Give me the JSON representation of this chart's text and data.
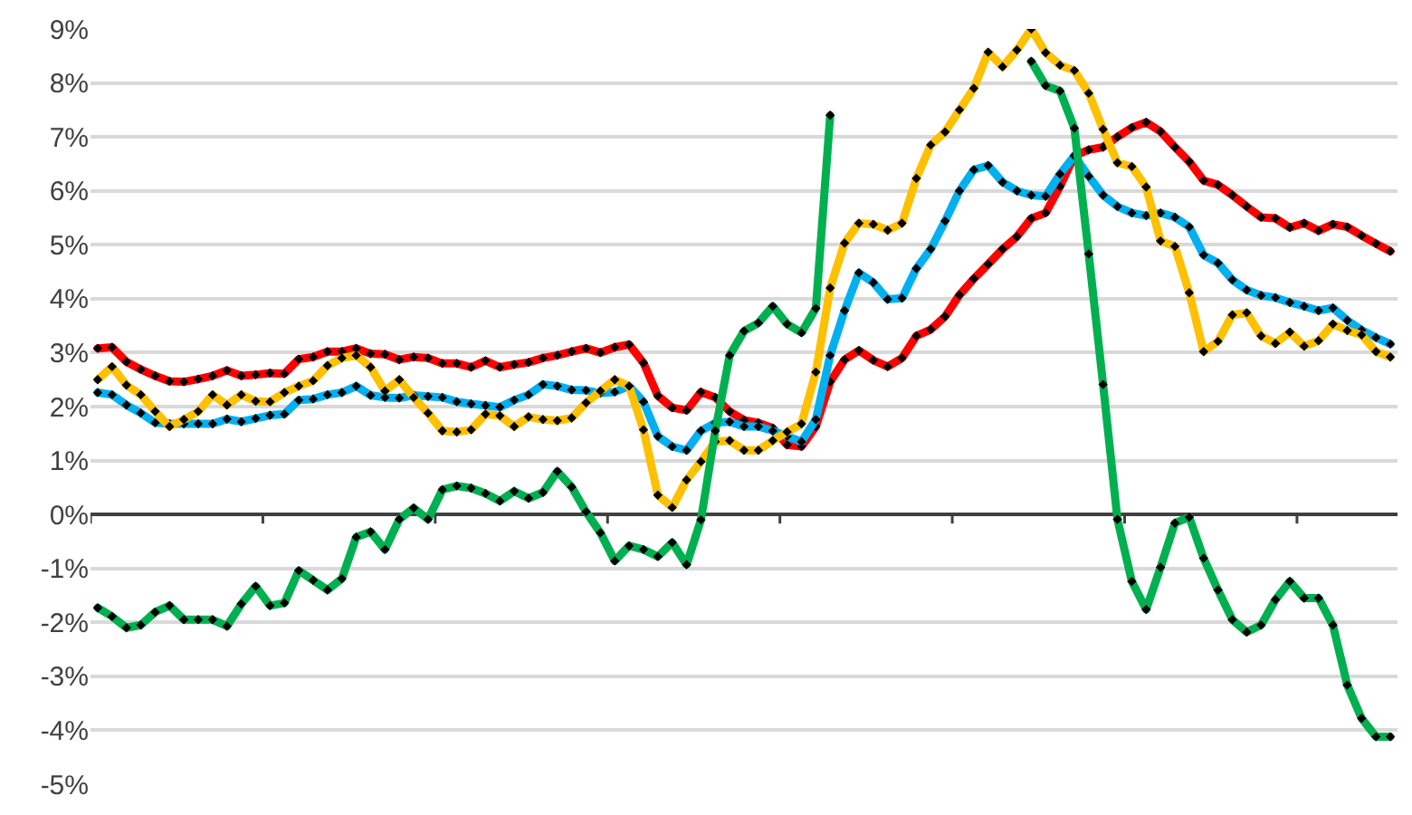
{
  "chart_data": {
    "type": "line",
    "categories": [
      null,
      null,
      null,
      null,
      null,
      null,
      null,
      null,
      null,
      null,
      null,
      null,
      null,
      null,
      null,
      null,
      null,
      null,
      null,
      null,
      null,
      null,
      null,
      null,
      null,
      null,
      null,
      null,
      null,
      null,
      null,
      null,
      null,
      null,
      null,
      null,
      null,
      null,
      null,
      null,
      null,
      null,
      null,
      null,
      null,
      null,
      null,
      null,
      null,
      null,
      null,
      null,
      null,
      null,
      null,
      null,
      null,
      null,
      null,
      null,
      null,
      null,
      null,
      null,
      null,
      null,
      null,
      null,
      null,
      null,
      null,
      null,
      null,
      null,
      null,
      null,
      null,
      null,
      null,
      null,
      null,
      null,
      null,
      null,
      null,
      null,
      null,
      null,
      null,
      null,
      null
    ],
    "ylim": [
      -5,
      9
    ],
    "yticks": [
      {
        "value": -5,
        "label": "-5%"
      },
      {
        "value": -4,
        "label": "-4%"
      },
      {
        "value": -3,
        "label": "-3%"
      },
      {
        "value": -2,
        "label": "-2%"
      },
      {
        "value": -1,
        "label": "-1%"
      },
      {
        "value": 0,
        "label": "0%"
      },
      {
        "value": 1,
        "label": "1%"
      },
      {
        "value": 2,
        "label": "2%"
      },
      {
        "value": 3,
        "label": "3%"
      },
      {
        "value": 4,
        "label": "4%"
      },
      {
        "value": 5,
        "label": "5%"
      },
      {
        "value": 6,
        "label": "6%"
      },
      {
        "value": 7,
        "label": "7%"
      },
      {
        "value": 8,
        "label": "8%"
      },
      {
        "value": 9,
        "label": "9%"
      }
    ],
    "grid": "y",
    "legend": false,
    "marker": "diamond",
    "tick_labels": "y",
    "series": [
      {
        "color": "#ff0000",
        "values": [
          3.08,
          3.1,
          2.83,
          2.69,
          2.57,
          2.47,
          2.46,
          2.51,
          2.57,
          2.67,
          2.57,
          2.59,
          2.62,
          2.61,
          2.88,
          2.92,
          3.02,
          3.02,
          3.08,
          2.98,
          2.97,
          2.87,
          2.92,
          2.9,
          2.8,
          2.8,
          2.73,
          2.85,
          2.73,
          2.78,
          2.82,
          2.9,
          2.95,
          3.02,
          3.08,
          3.0,
          3.1,
          3.15,
          2.81,
          2.2,
          1.98,
          1.93,
          2.27,
          2.17,
          1.91,
          1.75,
          1.7,
          1.6,
          1.29,
          1.26,
          1.63,
          2.46,
          2.87,
          3.04,
          2.86,
          2.74,
          2.9,
          3.31,
          3.43,
          3.67,
          4.07,
          4.37,
          4.64,
          4.92,
          5.15,
          5.49,
          5.59,
          6.08,
          6.65,
          6.76,
          6.81,
          7.0,
          7.17,
          7.27,
          7.1,
          6.81,
          6.54,
          6.19,
          6.11,
          5.92,
          5.71,
          5.51,
          5.49,
          5.32,
          5.4,
          5.26,
          5.38,
          5.33,
          5.17,
          5.02,
          4.88
        ]
      },
      {
        "color": "#00b0f0",
        "values": [
          2.26,
          2.22,
          2.03,
          1.88,
          1.7,
          1.68,
          1.68,
          1.68,
          1.68,
          1.77,
          1.72,
          1.78,
          1.84,
          1.86,
          2.12,
          2.14,
          2.22,
          2.26,
          2.38,
          2.21,
          2.17,
          2.16,
          2.21,
          2.19,
          2.17,
          2.09,
          2.05,
          2.02,
          1.99,
          2.12,
          2.22,
          2.41,
          2.38,
          2.31,
          2.3,
          2.25,
          2.27,
          2.38,
          2.09,
          1.45,
          1.26,
          1.19,
          1.55,
          1.7,
          1.72,
          1.63,
          1.63,
          1.55,
          1.45,
          1.35,
          1.76,
          2.95,
          3.78,
          4.48,
          4.3,
          3.99,
          4.01,
          4.56,
          4.92,
          5.44,
          6.0,
          6.39,
          6.47,
          6.16,
          6.0,
          5.92,
          5.9,
          6.31,
          6.65,
          6.27,
          5.92,
          5.71,
          5.59,
          5.54,
          5.59,
          5.51,
          5.33,
          4.81,
          4.66,
          4.35,
          4.16,
          4.06,
          4.02,
          3.93,
          3.86,
          3.78,
          3.83,
          3.6,
          3.42,
          3.28,
          3.16
        ]
      },
      {
        "color": "#ffc000",
        "values": [
          2.5,
          2.74,
          2.4,
          2.22,
          1.91,
          1.63,
          1.76,
          1.91,
          2.22,
          2.03,
          2.22,
          2.1,
          2.09,
          2.26,
          2.38,
          2.48,
          2.76,
          2.9,
          2.95,
          2.73,
          2.29,
          2.5,
          2.17,
          1.88,
          1.55,
          1.53,
          1.57,
          1.86,
          1.83,
          1.63,
          1.81,
          1.76,
          1.74,
          1.79,
          2.07,
          2.29,
          2.5,
          2.38,
          1.57,
          0.36,
          0.13,
          0.64,
          0.98,
          1.35,
          1.37,
          1.19,
          1.19,
          1.37,
          1.53,
          1.68,
          2.64,
          4.2,
          5.03,
          5.4,
          5.38,
          5.27,
          5.4,
          6.23,
          6.85,
          7.09,
          7.5,
          7.9,
          8.57,
          8.3,
          8.61,
          9.0,
          8.56,
          8.33,
          8.23,
          7.81,
          7.14,
          6.52,
          6.45,
          6.07,
          5.07,
          4.97,
          4.11,
          3.02,
          3.21,
          3.7,
          3.74,
          3.31,
          3.17,
          3.38,
          3.12,
          3.22,
          3.53,
          3.41,
          3.33,
          3.02,
          2.92
        ]
      },
      {
        "color": "#00b050",
        "values": [
          -1.73,
          -1.89,
          -2.1,
          -2.05,
          -1.81,
          -1.69,
          -1.95,
          -1.95,
          -1.95,
          -2.07,
          -1.66,
          -1.33,
          -1.69,
          -1.64,
          -1.04,
          -1.22,
          -1.4,
          -1.19,
          -0.42,
          -0.32,
          -0.65,
          -0.09,
          0.12,
          -0.09,
          0.46,
          0.53,
          0.49,
          0.39,
          0.25,
          0.43,
          0.3,
          0.41,
          0.8,
          0.51,
          0.05,
          -0.34,
          -0.86,
          -0.58,
          -0.65,
          -0.78,
          -0.52,
          -0.93,
          -0.1,
          1.55,
          2.95,
          3.4,
          3.55,
          3.86,
          3.53,
          3.37,
          3.82,
          7.4,
          null,
          null,
          null,
          null,
          null,
          null,
          null,
          null,
          null,
          null,
          null,
          null,
          null,
          8.4,
          7.95,
          7.85,
          7.16,
          4.83,
          2.41,
          -0.09,
          -1.24,
          -1.76,
          -0.98,
          -0.16,
          -0.05,
          -0.81,
          -1.4,
          -1.95,
          -2.18,
          -2.05,
          -1.58,
          -1.24,
          -1.55,
          -1.55,
          -2.05,
          -3.16,
          -3.78,
          -4.12,
          -4.12
        ]
      }
    ]
  }
}
